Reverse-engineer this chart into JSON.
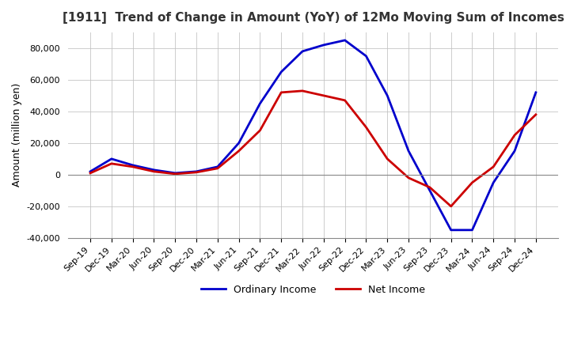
{
  "title": "[1911]  Trend of Change in Amount (YoY) of 12Mo Moving Sum of Incomes",
  "ylabel": "Amount (million yen)",
  "background_color": "#ffffff",
  "grid_color": "#c0c0c0",
  "x_labels": [
    "Sep-19",
    "Dec-19",
    "Mar-20",
    "Jun-20",
    "Sep-20",
    "Dec-20",
    "Mar-21",
    "Jun-21",
    "Sep-21",
    "Dec-21",
    "Mar-22",
    "Jun-22",
    "Sep-22",
    "Dec-22",
    "Mar-23",
    "Jun-23",
    "Sep-23",
    "Dec-23",
    "Mar-24",
    "Jun-24",
    "Sep-24",
    "Dec-24"
  ],
  "ordinary_income": [
    2000,
    10000,
    6000,
    3000,
    1000,
    2000,
    5000,
    20000,
    45000,
    65000,
    78000,
    82000,
    85000,
    75000,
    50000,
    15000,
    -10000,
    -35000,
    -35000,
    -5000,
    15000,
    52000
  ],
  "net_income": [
    1000,
    7000,
    5000,
    2000,
    500,
    1500,
    4000,
    15000,
    28000,
    52000,
    53000,
    50000,
    47000,
    30000,
    10000,
    -2000,
    -8000,
    -20000,
    -5000,
    5000,
    25000,
    38000
  ],
  "ordinary_color": "#0000cc",
  "net_color": "#cc0000",
  "ylim": [
    -40000,
    90000
  ],
  "yticks": [
    -40000,
    -20000,
    0,
    20000,
    40000,
    60000,
    80000
  ],
  "legend_labels": [
    "Ordinary Income",
    "Net Income"
  ]
}
